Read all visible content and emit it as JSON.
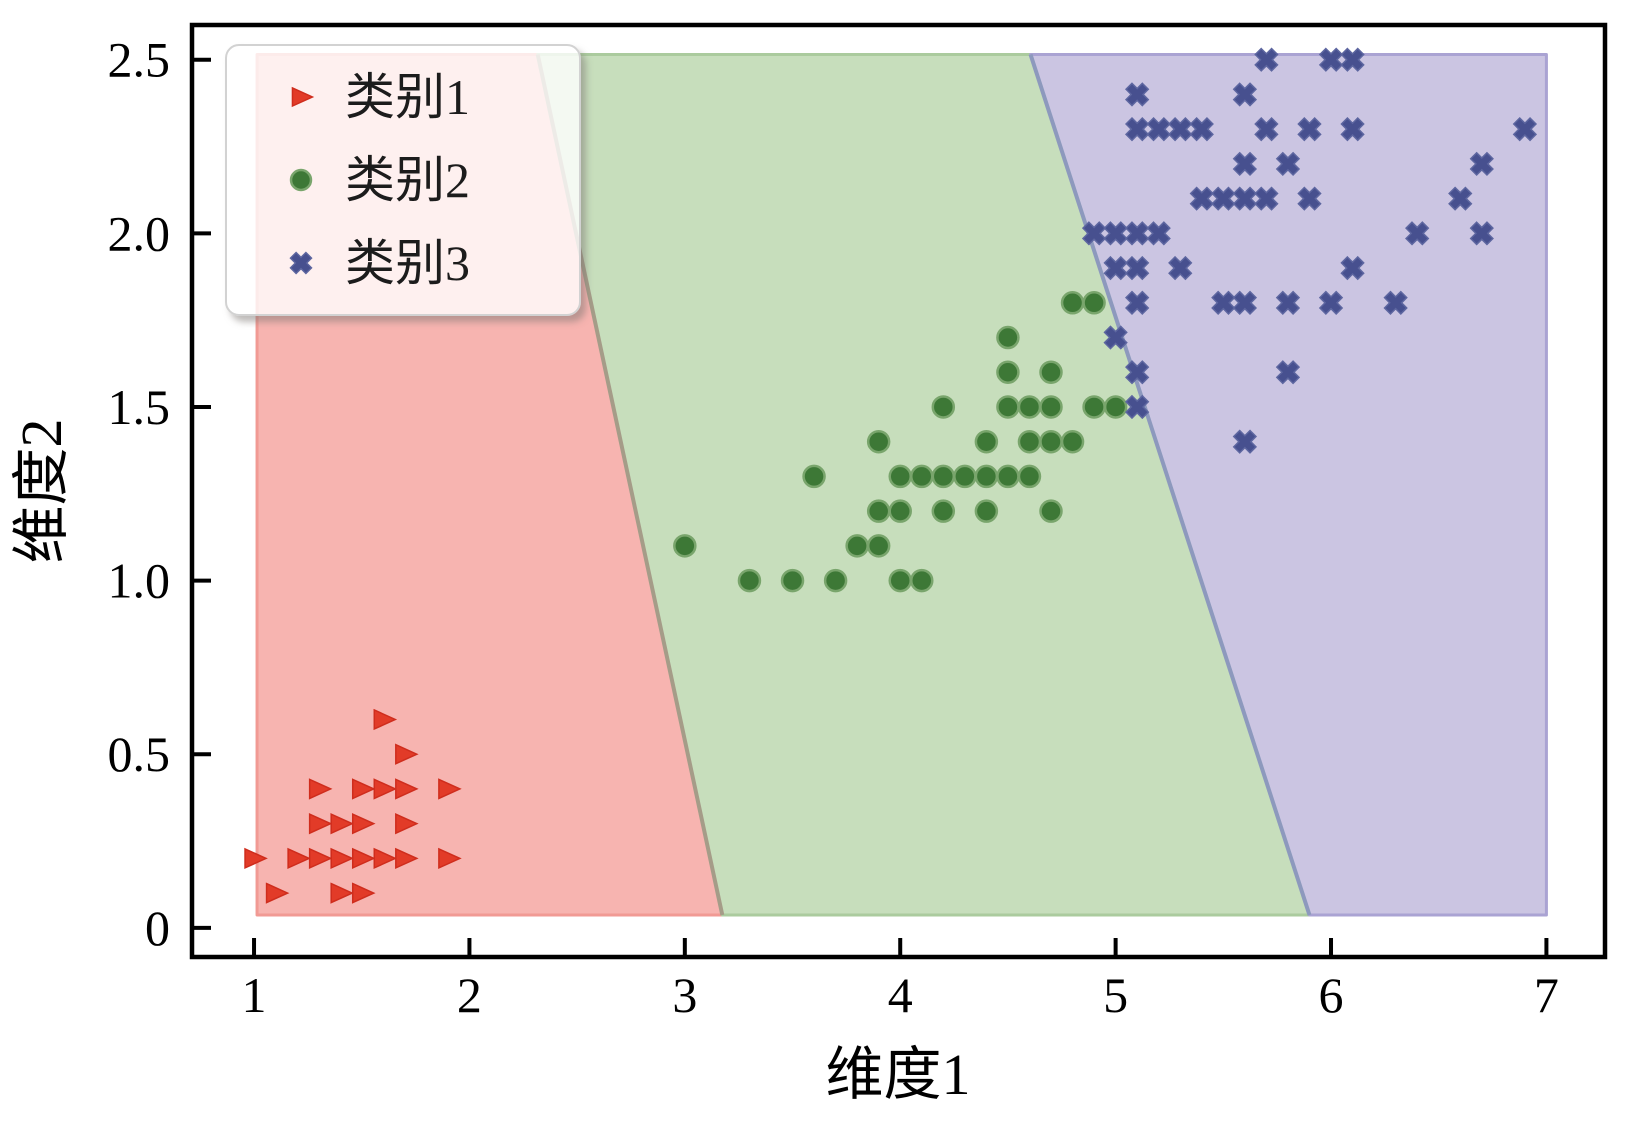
{
  "chart_data": {
    "type": "scatter",
    "title": "",
    "xlabel": "维度1",
    "ylabel": "维度2",
    "xlim": [
      0.712,
      7.272
    ],
    "ylim": [
      -0.084,
      2.6
    ],
    "x_ticks": [
      1,
      2,
      3,
      4,
      5,
      6,
      7
    ],
    "x_tick_labels": [
      "1",
      "2",
      "3",
      "4",
      "5",
      "6",
      "7"
    ],
    "y_ticks": [
      0,
      0.5,
      1.0,
      1.5,
      2.0,
      2.5
    ],
    "y_tick_labels": [
      "0",
      "0.5",
      "1.0",
      "1.5",
      "2.0",
      "2.5"
    ],
    "grid": false,
    "legend": {
      "position": "upper-left",
      "entries": [
        {
          "label": "类别1",
          "marker": "triangle-right",
          "color": "#e23b28"
        },
        {
          "label": "类别2",
          "marker": "circle",
          "color": "#3d7836"
        },
        {
          "label": "类别3",
          "marker": "x",
          "color": "#47508f"
        }
      ]
    },
    "regions": [
      {
        "name": "region-class1",
        "fill": "#f7b4b0",
        "stroke": "#f19a94",
        "points": [
          [
            1.014,
            0.037
          ],
          [
            1.014,
            2.515
          ],
          [
            2.317,
            2.515
          ],
          [
            3.174,
            0.037
          ]
        ]
      },
      {
        "name": "region-class2",
        "fill": "#c7debc",
        "stroke": "#abcb9e",
        "points": [
          [
            3.174,
            0.037
          ],
          [
            2.317,
            2.515
          ],
          [
            4.605,
            2.515
          ],
          [
            5.9,
            0.037
          ]
        ]
      },
      {
        "name": "region-class3",
        "fill": "#cbc5e2",
        "stroke": "#aaa3d3",
        "points": [
          [
            5.9,
            0.037
          ],
          [
            4.605,
            2.515
          ],
          [
            7.0,
            2.515
          ],
          [
            7.0,
            0.037
          ]
        ]
      }
    ],
    "boundaries": [
      {
        "from": [
          2.317,
          2.515
        ],
        "to": [
          3.174,
          0.037
        ],
        "color": "#a59c88"
      },
      {
        "from": [
          4.605,
          2.515
        ],
        "to": [
          5.9,
          0.037
        ],
        "color": "#8d99bd"
      }
    ],
    "series": [
      {
        "name": "类别1",
        "marker": "triangle-right",
        "color": "#e23b28",
        "edge": "#cf2d1d",
        "points": [
          [
            1.0,
            0.2
          ],
          [
            1.1,
            0.1
          ],
          [
            1.2,
            0.2
          ],
          [
            1.3,
            0.2
          ],
          [
            1.3,
            0.3
          ],
          [
            1.3,
            0.4
          ],
          [
            1.4,
            0.1
          ],
          [
            1.4,
            0.2
          ],
          [
            1.4,
            0.3
          ],
          [
            1.5,
            0.1
          ],
          [
            1.5,
            0.2
          ],
          [
            1.5,
            0.3
          ],
          [
            1.5,
            0.4
          ],
          [
            1.6,
            0.2
          ],
          [
            1.6,
            0.4
          ],
          [
            1.6,
            0.6
          ],
          [
            1.7,
            0.2
          ],
          [
            1.7,
            0.3
          ],
          [
            1.7,
            0.4
          ],
          [
            1.7,
            0.5
          ],
          [
            1.9,
            0.2
          ],
          [
            1.9,
            0.4
          ]
        ]
      },
      {
        "name": "类别2",
        "marker": "circle",
        "color": "#3d7836",
        "edge": "#79a56c",
        "points": [
          [
            3.0,
            1.1
          ],
          [
            3.3,
            1.0
          ],
          [
            3.5,
            1.0
          ],
          [
            3.6,
            1.3
          ],
          [
            3.7,
            1.0
          ],
          [
            3.8,
            1.1
          ],
          [
            3.9,
            1.1
          ],
          [
            3.9,
            1.2
          ],
          [
            3.9,
            1.4
          ],
          [
            4.0,
            1.0
          ],
          [
            4.0,
            1.2
          ],
          [
            4.0,
            1.3
          ],
          [
            4.1,
            1.0
          ],
          [
            4.1,
            1.3
          ],
          [
            4.2,
            1.2
          ],
          [
            4.2,
            1.3
          ],
          [
            4.2,
            1.5
          ],
          [
            4.3,
            1.3
          ],
          [
            4.4,
            1.2
          ],
          [
            4.4,
            1.3
          ],
          [
            4.4,
            1.4
          ],
          [
            4.5,
            1.3
          ],
          [
            4.5,
            1.5
          ],
          [
            4.5,
            1.6
          ],
          [
            4.5,
            1.7
          ],
          [
            4.6,
            1.3
          ],
          [
            4.6,
            1.4
          ],
          [
            4.6,
            1.5
          ],
          [
            4.7,
            1.2
          ],
          [
            4.7,
            1.4
          ],
          [
            4.7,
            1.5
          ],
          [
            4.7,
            1.6
          ],
          [
            4.8,
            1.4
          ],
          [
            4.8,
            1.8
          ],
          [
            4.9,
            1.5
          ],
          [
            4.9,
            1.8
          ],
          [
            5.0,
            1.5
          ]
        ]
      },
      {
        "name": "类别3",
        "marker": "x",
        "color": "#47508f",
        "edge": "#5d66a0",
        "points": [
          [
            4.9,
            2.0
          ],
          [
            5.0,
            1.7
          ],
          [
            5.0,
            1.9
          ],
          [
            5.0,
            2.0
          ],
          [
            5.1,
            1.5
          ],
          [
            5.1,
            1.6
          ],
          [
            5.1,
            1.8
          ],
          [
            5.1,
            1.9
          ],
          [
            5.1,
            2.0
          ],
          [
            5.1,
            2.3
          ],
          [
            5.1,
            2.4
          ],
          [
            5.2,
            2.0
          ],
          [
            5.2,
            2.3
          ],
          [
            5.3,
            1.9
          ],
          [
            5.3,
            2.3
          ],
          [
            5.4,
            2.1
          ],
          [
            5.4,
            2.3
          ],
          [
            5.5,
            1.8
          ],
          [
            5.5,
            2.1
          ],
          [
            5.6,
            1.4
          ],
          [
            5.6,
            1.8
          ],
          [
            5.6,
            2.1
          ],
          [
            5.6,
            2.2
          ],
          [
            5.6,
            2.4
          ],
          [
            5.7,
            2.1
          ],
          [
            5.7,
            2.3
          ],
          [
            5.7,
            2.5
          ],
          [
            5.8,
            1.6
          ],
          [
            5.8,
            1.8
          ],
          [
            5.8,
            2.2
          ],
          [
            5.9,
            2.1
          ],
          [
            5.9,
            2.3
          ],
          [
            6.0,
            1.8
          ],
          [
            6.0,
            2.5
          ],
          [
            6.1,
            1.9
          ],
          [
            6.1,
            2.3
          ],
          [
            6.1,
            2.5
          ],
          [
            6.3,
            1.8
          ],
          [
            6.4,
            2.0
          ],
          [
            6.6,
            2.1
          ],
          [
            6.7,
            2.0
          ],
          [
            6.7,
            2.2
          ],
          [
            6.9,
            2.3
          ]
        ]
      }
    ]
  }
}
